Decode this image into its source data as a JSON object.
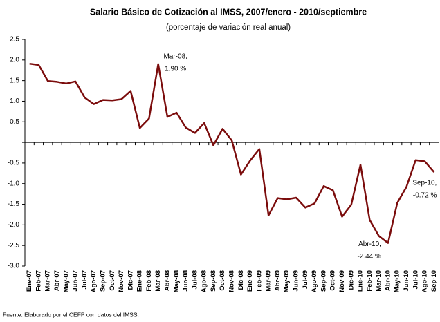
{
  "chart_data": {
    "type": "line",
    "title": "Salario Básico de Cotización al IMSS, 2007/enero - 2010/septiembre",
    "subtitle": "(porcentaje de variación real anual)",
    "note": "Fuente: Elaborado por el CEFP con datos del IMSS.",
    "categories": [
      "Ene-07",
      "Feb-07",
      "Mar-07",
      "Abr-07",
      "May-07",
      "Jun-07",
      "Jul-07",
      "Ago-07",
      "Sep-07",
      "Oct-07",
      "Nov-07",
      "Dic-07",
      "Ene-08",
      "Feb-08",
      "Mar-08",
      "Abr-08",
      "May-08",
      "Jun-08",
      "Jul-08",
      "Ago-08",
      "Sep-08",
      "Oct-08",
      "Nov-08",
      "Dic-08",
      "Ene-09",
      "Feb-09",
      "Mar-09",
      "Abr-09",
      "May-09",
      "Jun-09",
      "Jul-09",
      "Ago-09",
      "Sep-09",
      "Oct-09",
      "Nov-09",
      "Dic-09",
      "Ene-10",
      "Feb-10",
      "Mar-10",
      "Abr-10",
      "May-10",
      "Jun-10",
      "Jul-10",
      "Ago-10",
      "Sep-10"
    ],
    "values": [
      1.91,
      1.88,
      1.49,
      1.47,
      1.43,
      1.48,
      1.09,
      0.93,
      1.03,
      1.02,
      1.05,
      1.25,
      0.35,
      0.58,
      1.9,
      0.62,
      0.72,
      0.36,
      0.23,
      0.47,
      -0.07,
      0.33,
      0.05,
      -0.78,
      -0.44,
      -0.16,
      -1.77,
      -1.35,
      -1.38,
      -1.34,
      -1.58,
      -1.48,
      -1.06,
      -1.16,
      -1.8,
      -1.51,
      -0.54,
      -1.88,
      -2.27,
      -2.44,
      -1.47,
      -1.08,
      -0.43,
      -0.46,
      -0.72
    ],
    "label_titles": [
      null,
      null,
      null,
      null,
      null,
      null,
      null,
      null,
      null,
      null,
      null,
      null,
      null,
      null,
      "Mar-08,",
      null,
      null,
      null,
      null,
      null,
      null,
      null,
      null,
      null,
      null,
      null,
      null,
      null,
      null,
      null,
      null,
      null,
      null,
      null,
      null,
      null,
      null,
      null,
      null,
      "Abr-10,",
      null,
      null,
      null,
      null,
      "Sep-10,"
    ],
    "value_labels": [
      null,
      null,
      null,
      null,
      null,
      null,
      null,
      null,
      null,
      null,
      null,
      null,
      null,
      null,
      "1.90 %",
      null,
      null,
      null,
      null,
      null,
      null,
      null,
      null,
      null,
      null,
      null,
      null,
      null,
      null,
      null,
      null,
      null,
      null,
      null,
      null,
      null,
      null,
      null,
      null,
      "-2.44 %",
      null,
      null,
      null,
      null,
      "-0.72 %"
    ],
    "color": "#7b0c0c",
    "ylim": [
      -3.0,
      2.5
    ],
    "yticks": [
      2.5,
      {
        "value": 2,
        "label": "2.0"
      },
      1.5,
      {
        "value": 1,
        "label": "1.0"
      },
      0.5,
      {
        "value": 0,
        "label": "-"
      },
      -0.5,
      {
        "value": -1,
        "label": "-1.0"
      },
      -1.5,
      {
        "value": -2,
        "label": "-2.0"
      },
      -2.5,
      {
        "value": -3,
        "label": "-3.0"
      }
    ]
  }
}
